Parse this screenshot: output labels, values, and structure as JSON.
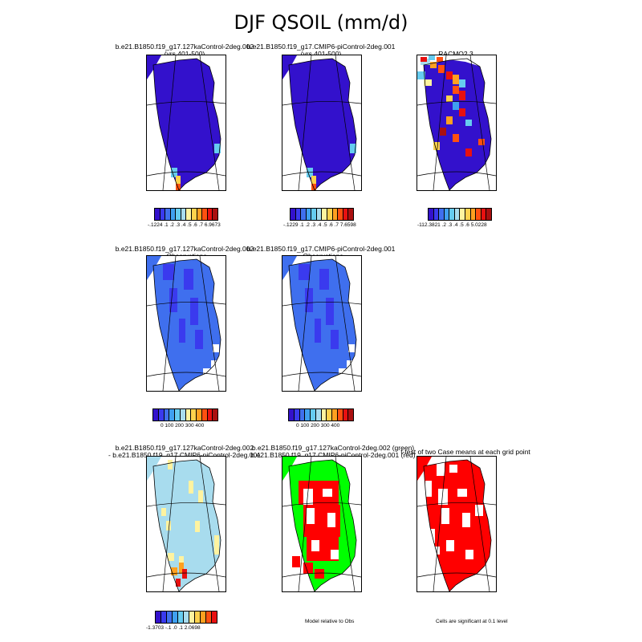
{
  "title": "DJF QSOIL (mm/d)",
  "panels": [
    {
      "id": "p1",
      "line1": "b.e21.B1850.f19_g17.127kaControl-2deg.002",
      "line2": "(yrs 401-500)"
    },
    {
      "id": "p2",
      "line1": "b.e21.B1850.f19_g17.CMIP6-piControl-2deg.001",
      "line2": "(yrs 401-500)"
    },
    {
      "id": "p3",
      "line1": "RACMO2.3",
      "line2": ""
    },
    {
      "id": "p4",
      "line1": "b.e21.B1850.f19_g17.127kaControl-2deg.002",
      "line2": "- Observations"
    },
    {
      "id": "p5",
      "line1": "b.e21.B1850.f19_g17.CMIP6-piControl-2deg.001",
      "line2": "- Observations"
    },
    {
      "id": "p7",
      "line1": "b.e21.B1850.f19_g17.127kaControl-2deg.002",
      "line2": "- b.e21.B1850.f19_g17.CMIP6-piControl-2deg.001"
    },
    {
      "id": "p8",
      "line1": "b.e21.B1850.f19_g17.127kaControl-2deg.002 (green)",
      "line2": "b.e21.B1850.f19_g17.CMIP6-piControl-2deg.001 (red)"
    },
    {
      "id": "p9",
      "line1": "t-test of two Case means at each grid point",
      "line2": ""
    }
  ],
  "colorbars": {
    "cb1": {
      "labels": "-.1224  .1  .2  .3  .4  .5  .6  .7  6.9673"
    },
    "cb2": {
      "labels": "-.1229  .1  .2  .3  .4  .5  .6  .7  7.6598"
    },
    "cb3": {
      "labels": "-112.3821  .2  .3  .4  .5  .6      5.0228"
    },
    "cb4": {
      "labels": "0   100  200  300  400"
    },
    "cb5": {
      "labels": "0   100  200  300  400"
    },
    "cb7": {
      "labels": "-1.3703      -.1   .0   .1      2.0698"
    }
  },
  "notes": {
    "model_relative": "Model relative to Obs",
    "significance": "Cells are significant at 0.1 level"
  },
  "colors": {
    "value_scale": [
      "#3311cc",
      "#3a3aee",
      "#3f6fee",
      "#3fa0f0",
      "#66ccf0",
      "#a8dcee",
      "#fff3a0",
      "#ffd24d",
      "#ffa020",
      "#ff5010",
      "#e81010",
      "#aa1010"
    ],
    "diff_scale": [
      "#3311cc",
      "#3a3aee",
      "#3f6fee",
      "#3fa0f0",
      "#66ccf0",
      "#a8dcee",
      "#fff3a0",
      "#ffd24d",
      "#ffa020",
      "#ff5010",
      "#e81010"
    ],
    "model_green": "#00ff00",
    "model_red": "#ff0000",
    "significant": "#ff0000"
  }
}
